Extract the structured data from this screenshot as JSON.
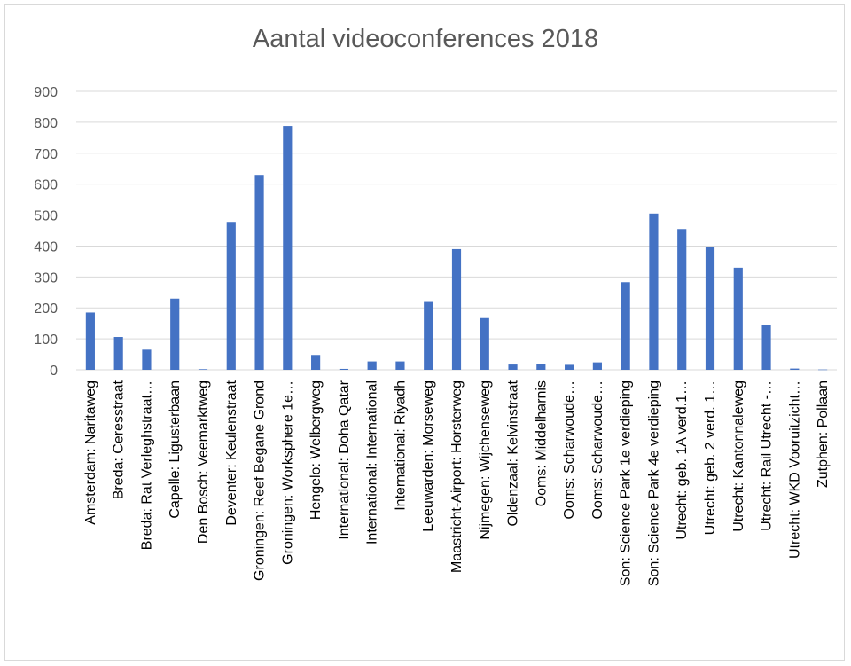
{
  "chart_data": {
    "type": "bar",
    "title": "Aantal videoconferences 2018",
    "xlabel": "",
    "ylabel": "",
    "ylim": [
      0,
      900
    ],
    "yticks": [
      0,
      100,
      200,
      300,
      400,
      500,
      600,
      700,
      800,
      900
    ],
    "grid": true,
    "bar_color": "#4472c4",
    "grid_color": "#d9d9d9",
    "categories": [
      "Amsterdam: Naritaweg",
      "Breda: Ceresstraat",
      "Breda: Rat Verleghstraat…",
      "Capelle: Ligusterbaan",
      "Den Bosch: Veemarktweg",
      "Deventer: Keulenstraat",
      "Groningen: Reef Begane Grond",
      "Groningen: Worksphere 1e…",
      "Hengelo: Welbergweg",
      "International: Doha Qatar",
      "International: International",
      "International: Riyadh",
      "Leeuwarden: Morseweg",
      "Maastricht-Airport: Horsterweg",
      "Nijmegen: Wijchenseweg",
      "Oldenzaal: Kelvinstraat",
      "Ooms: Middelharnis",
      "Ooms: Scharwoude…",
      "Ooms: Scharwoude…",
      "Son: Science Park 1e verdieping",
      "Son: Science Park 4e verdieping",
      "Utrecht: geb. 1A verd.1…",
      "Utrecht: geb. 2 verd. 1…",
      "Utrecht: Kantonnaleweg",
      "Utrecht: Rail Utrecht -…",
      "Utrecht: WKD Vooruitzicht…",
      "Zutphen: Pollaan"
    ],
    "values": [
      185,
      106,
      65,
      230,
      2,
      478,
      630,
      788,
      48,
      3,
      27,
      27,
      222,
      390,
      167,
      17,
      20,
      16,
      24,
      283,
      505,
      455,
      397,
      330,
      146,
      4,
      1
    ]
  }
}
